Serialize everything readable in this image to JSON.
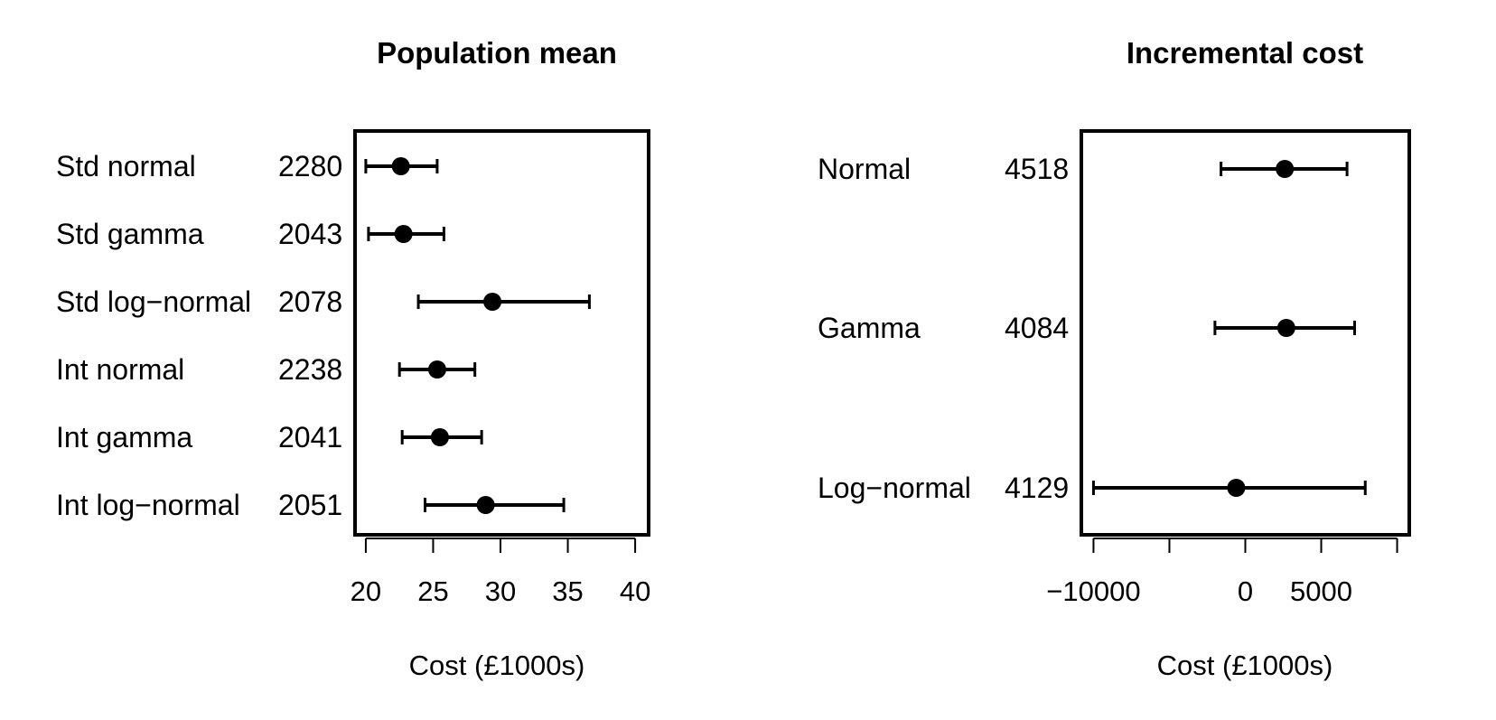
{
  "chart_data": [
    {
      "type": "forest",
      "title": "Population mean",
      "xlabel": "Cost (£1000s)",
      "ylabel": "",
      "xlim": [
        19.2,
        41
      ],
      "xticks": [
        20,
        25,
        30,
        35,
        40
      ],
      "xtick_labels": [
        "20",
        "25",
        "30",
        "35",
        "40"
      ],
      "grid": false,
      "rows": [
        {
          "label": "Std normal",
          "value_label": "2280",
          "estimate": 22.6,
          "lower": 20.0,
          "upper": 25.3
        },
        {
          "label": "Std gamma",
          "value_label": "2043",
          "estimate": 22.8,
          "lower": 20.2,
          "upper": 25.8
        },
        {
          "label": "Std log−normal",
          "value_label": "2078",
          "estimate": 29.4,
          "lower": 23.9,
          "upper": 36.6
        },
        {
          "label": "Int normal",
          "value_label": "2238",
          "estimate": 25.3,
          "lower": 22.5,
          "upper": 28.1
        },
        {
          "label": "Int gamma",
          "value_label": "2041",
          "estimate": 25.5,
          "lower": 22.7,
          "upper": 28.6
        },
        {
          "label": "Int log−normal",
          "value_label": "2051",
          "estimate": 28.9,
          "lower": 24.4,
          "upper": 34.7
        }
      ]
    },
    {
      "type": "forest",
      "title": "Incremental cost",
      "xlabel": "Cost (£1000s)",
      "ylabel": "",
      "xlim": [
        -10800,
        10800
      ],
      "xticks": [
        -10000,
        -5000,
        0,
        5000,
        10000
      ],
      "xtick_labels": [
        "−10000",
        "",
        "0",
        "5000",
        ""
      ],
      "grid": false,
      "rows": [
        {
          "label": "Normal",
          "value_label": "4518",
          "estimate": 2600,
          "lower": -1600,
          "upper": 6700
        },
        {
          "label": "Gamma",
          "value_label": "4084",
          "estimate": 2700,
          "lower": -2000,
          "upper": 7200
        },
        {
          "label": "Log−normal",
          "value_label": "4129",
          "estimate": -600,
          "lower": -10000,
          "upper": 7900
        }
      ]
    }
  ]
}
